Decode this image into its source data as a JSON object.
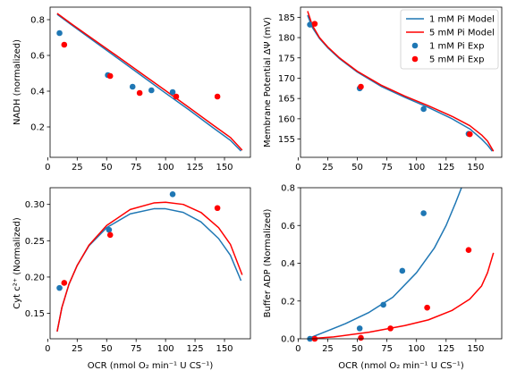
{
  "colors": {
    "model_1mM": "#1f77b4",
    "model_5mM": "#ff0000",
    "exp_1mM": "#1f77b4",
    "exp_5mM": "#ff0000"
  },
  "legend": {
    "placement": "top-right",
    "entries": [
      {
        "label": "1 mM Pi Model",
        "kind": "line",
        "color": "#1f77b4"
      },
      {
        "label": "5 mM Pi Model",
        "kind": "line",
        "color": "#ff0000"
      },
      {
        "label": "1 mM Pi Exp",
        "kind": "marker",
        "color": "#1f77b4"
      },
      {
        "label": "5 mM Pi Exp",
        "kind": "marker",
        "color": "#ff0000"
      }
    ]
  },
  "chart_data": [
    {
      "type": "scatter",
      "ylabel": "NADH (normalized)",
      "xlabel": "",
      "xlim": [
        2,
        172
      ],
      "ylim": [
        0.03,
        0.87
      ],
      "xticks": [
        0,
        25,
        50,
        75,
        100,
        125,
        150
      ],
      "yticks": [
        0.2,
        0.4,
        0.6,
        0.8
      ],
      "yticklabels": [
        "0.2",
        "0.4",
        "0.6",
        "0.8"
      ],
      "series": [
        {
          "name": "1 mM Pi Model",
          "kind": "line",
          "color": "#1f77b4",
          "x": [
            8,
            20,
            40,
            60,
            80,
            100,
            120,
            140,
            155,
            164
          ],
          "y": [
            0.83,
            0.772,
            0.676,
            0.581,
            0.485,
            0.389,
            0.295,
            0.197,
            0.125,
            0.065
          ]
        },
        {
          "name": "5 mM Pi Model",
          "kind": "line",
          "color": "#ff0000",
          "x": [
            8,
            20,
            40,
            60,
            80,
            100,
            120,
            140,
            155,
            165
          ],
          "y": [
            0.835,
            0.777,
            0.684,
            0.591,
            0.497,
            0.403,
            0.308,
            0.212,
            0.141,
            0.07
          ]
        },
        {
          "name": "1 mM Pi Exp",
          "kind": "marker",
          "color": "#1f77b4",
          "x": [
            10,
            51,
            72,
            88,
            106
          ],
          "y": [
            0.725,
            0.49,
            0.425,
            0.405,
            0.395
          ]
        },
        {
          "name": "5 mM Pi Exp",
          "kind": "marker",
          "color": "#ff0000",
          "x": [
            14,
            53,
            78,
            109,
            144
          ],
          "y": [
            0.66,
            0.485,
            0.39,
            0.37,
            0.37
          ]
        }
      ]
    },
    {
      "type": "scatter",
      "ylabel": "Membrane Potential ΔΨ (mV)",
      "xlabel": "",
      "xlim": [
        2,
        172
      ],
      "ylim": [
        150.5,
        187.5
      ],
      "xticks": [
        0,
        25,
        50,
        75,
        100,
        125,
        150
      ],
      "yticks": [
        155,
        160,
        165,
        170,
        175,
        180,
        185
      ],
      "yticklabels": [
        "155",
        "160",
        "165",
        "170",
        "175",
        "180",
        "185"
      ],
      "series": [
        {
          "name": "1 mM Pi Model",
          "kind": "line",
          "color": "#1f77b4",
          "x": [
            8,
            12,
            18,
            25,
            35,
            50,
            70,
            90,
            110,
            130,
            145,
            155,
            160,
            164
          ],
          "y": [
            185.5,
            182.5,
            179.8,
            177.5,
            174.8,
            171.5,
            168.0,
            165.3,
            162.8,
            160.0,
            157.5,
            155.0,
            153.5,
            152.0
          ]
        },
        {
          "name": "5 mM Pi Model",
          "kind": "line",
          "color": "#ff0000",
          "x": [
            8,
            12,
            18,
            25,
            35,
            50,
            70,
            90,
            110,
            130,
            145,
            155,
            160,
            165
          ],
          "y": [
            186.5,
            183.0,
            180.0,
            177.7,
            175.0,
            171.7,
            168.3,
            165.6,
            163.2,
            160.6,
            158.3,
            156.0,
            154.5,
            152.0
          ]
        },
        {
          "name": "1 mM Pi Exp",
          "kind": "marker",
          "color": "#1f77b4",
          "x": [
            10,
            52,
            106,
            144
          ],
          "y": [
            183.2,
            167.5,
            162.4,
            156.3
          ]
        },
        {
          "name": "5 mM Pi Exp",
          "kind": "marker",
          "color": "#ff0000",
          "x": [
            14,
            53,
            145
          ],
          "y": [
            183.4,
            167.9,
            156.2
          ]
        }
      ]
    },
    {
      "type": "scatter",
      "ylabel": "Cyt c²⁺ (Normalized)",
      "xlabel": "OCR (nmol O₂ min⁻¹ U CS⁻¹)",
      "xlim": [
        2,
        172
      ],
      "ylim": [
        0.115,
        0.323
      ],
      "xticks": [
        0,
        25,
        50,
        75,
        100,
        125,
        150
      ],
      "yticks": [
        0.15,
        0.2,
        0.25,
        0.3
      ],
      "yticklabels": [
        "0.15",
        "0.20",
        "0.25",
        "0.30"
      ],
      "series": [
        {
          "name": "1 mM Pi Model",
          "kind": "line",
          "color": "#1f77b4",
          "x": [
            8,
            12,
            18,
            25,
            35,
            50,
            70,
            90,
            100,
            115,
            130,
            145,
            155,
            164
          ],
          "y": [
            0.125,
            0.158,
            0.19,
            0.216,
            0.243,
            0.268,
            0.287,
            0.294,
            0.294,
            0.289,
            0.276,
            0.253,
            0.23,
            0.195
          ]
        },
        {
          "name": "5 mM Pi Model",
          "kind": "line",
          "color": "#ff0000",
          "x": [
            8,
            12,
            18,
            25,
            35,
            50,
            70,
            90,
            100,
            115,
            130,
            145,
            155,
            165
          ],
          "y": [
            0.125,
            0.158,
            0.19,
            0.216,
            0.244,
            0.271,
            0.293,
            0.302,
            0.303,
            0.3,
            0.289,
            0.268,
            0.245,
            0.203
          ]
        },
        {
          "name": "1 mM Pi Exp",
          "kind": "marker",
          "color": "#1f77b4",
          "x": [
            10,
            52,
            106
          ],
          "y": [
            0.185,
            0.265,
            0.314
          ]
        },
        {
          "name": "5 mM Pi Exp",
          "kind": "marker",
          "color": "#ff0000",
          "x": [
            14,
            53,
            144
          ],
          "y": [
            0.192,
            0.258,
            0.295
          ]
        }
      ]
    },
    {
      "type": "scatter",
      "ylabel": "Buffer ADP (Normalized)",
      "xlabel": "OCR (nmol O₂ min⁻¹ U CS⁻¹)",
      "xlim": [
        2,
        172
      ],
      "ylim": [
        0.0,
        0.8
      ],
      "xticks": [
        0,
        25,
        50,
        75,
        100,
        125,
        150
      ],
      "yticks": [
        0.0,
        0.2,
        0.4,
        0.6,
        0.8
      ],
      "yticklabels": [
        "0.0",
        "0.2",
        "0.4",
        "0.6",
        "0.8"
      ],
      "series": [
        {
          "name": "1 mM Pi Model",
          "kind": "line",
          "color": "#1f77b4",
          "x": [
            8,
            20,
            40,
            60,
            80,
            100,
            115,
            125,
            133,
            138
          ],
          "y": [
            0.0,
            0.03,
            0.08,
            0.14,
            0.22,
            0.35,
            0.48,
            0.6,
            0.72,
            0.8
          ]
        },
        {
          "name": "5 mM Pi Model",
          "kind": "line",
          "color": "#ff0000",
          "x": [
            8,
            30,
            60,
            90,
            110,
            130,
            145,
            155,
            160,
            165
          ],
          "y": [
            0.0,
            0.01,
            0.035,
            0.07,
            0.1,
            0.15,
            0.21,
            0.28,
            0.35,
            0.455
          ]
        },
        {
          "name": "1 mM Pi Exp",
          "kind": "marker",
          "color": "#1f77b4",
          "x": [
            10,
            52,
            72,
            88,
            106
          ],
          "y": [
            0.0,
            0.055,
            0.18,
            0.36,
            0.665
          ]
        },
        {
          "name": "5 mM Pi Exp",
          "kind": "marker",
          "color": "#ff0000",
          "x": [
            14,
            53,
            78,
            109,
            144
          ],
          "y": [
            0.0,
            0.005,
            0.055,
            0.165,
            0.47
          ]
        }
      ]
    }
  ]
}
